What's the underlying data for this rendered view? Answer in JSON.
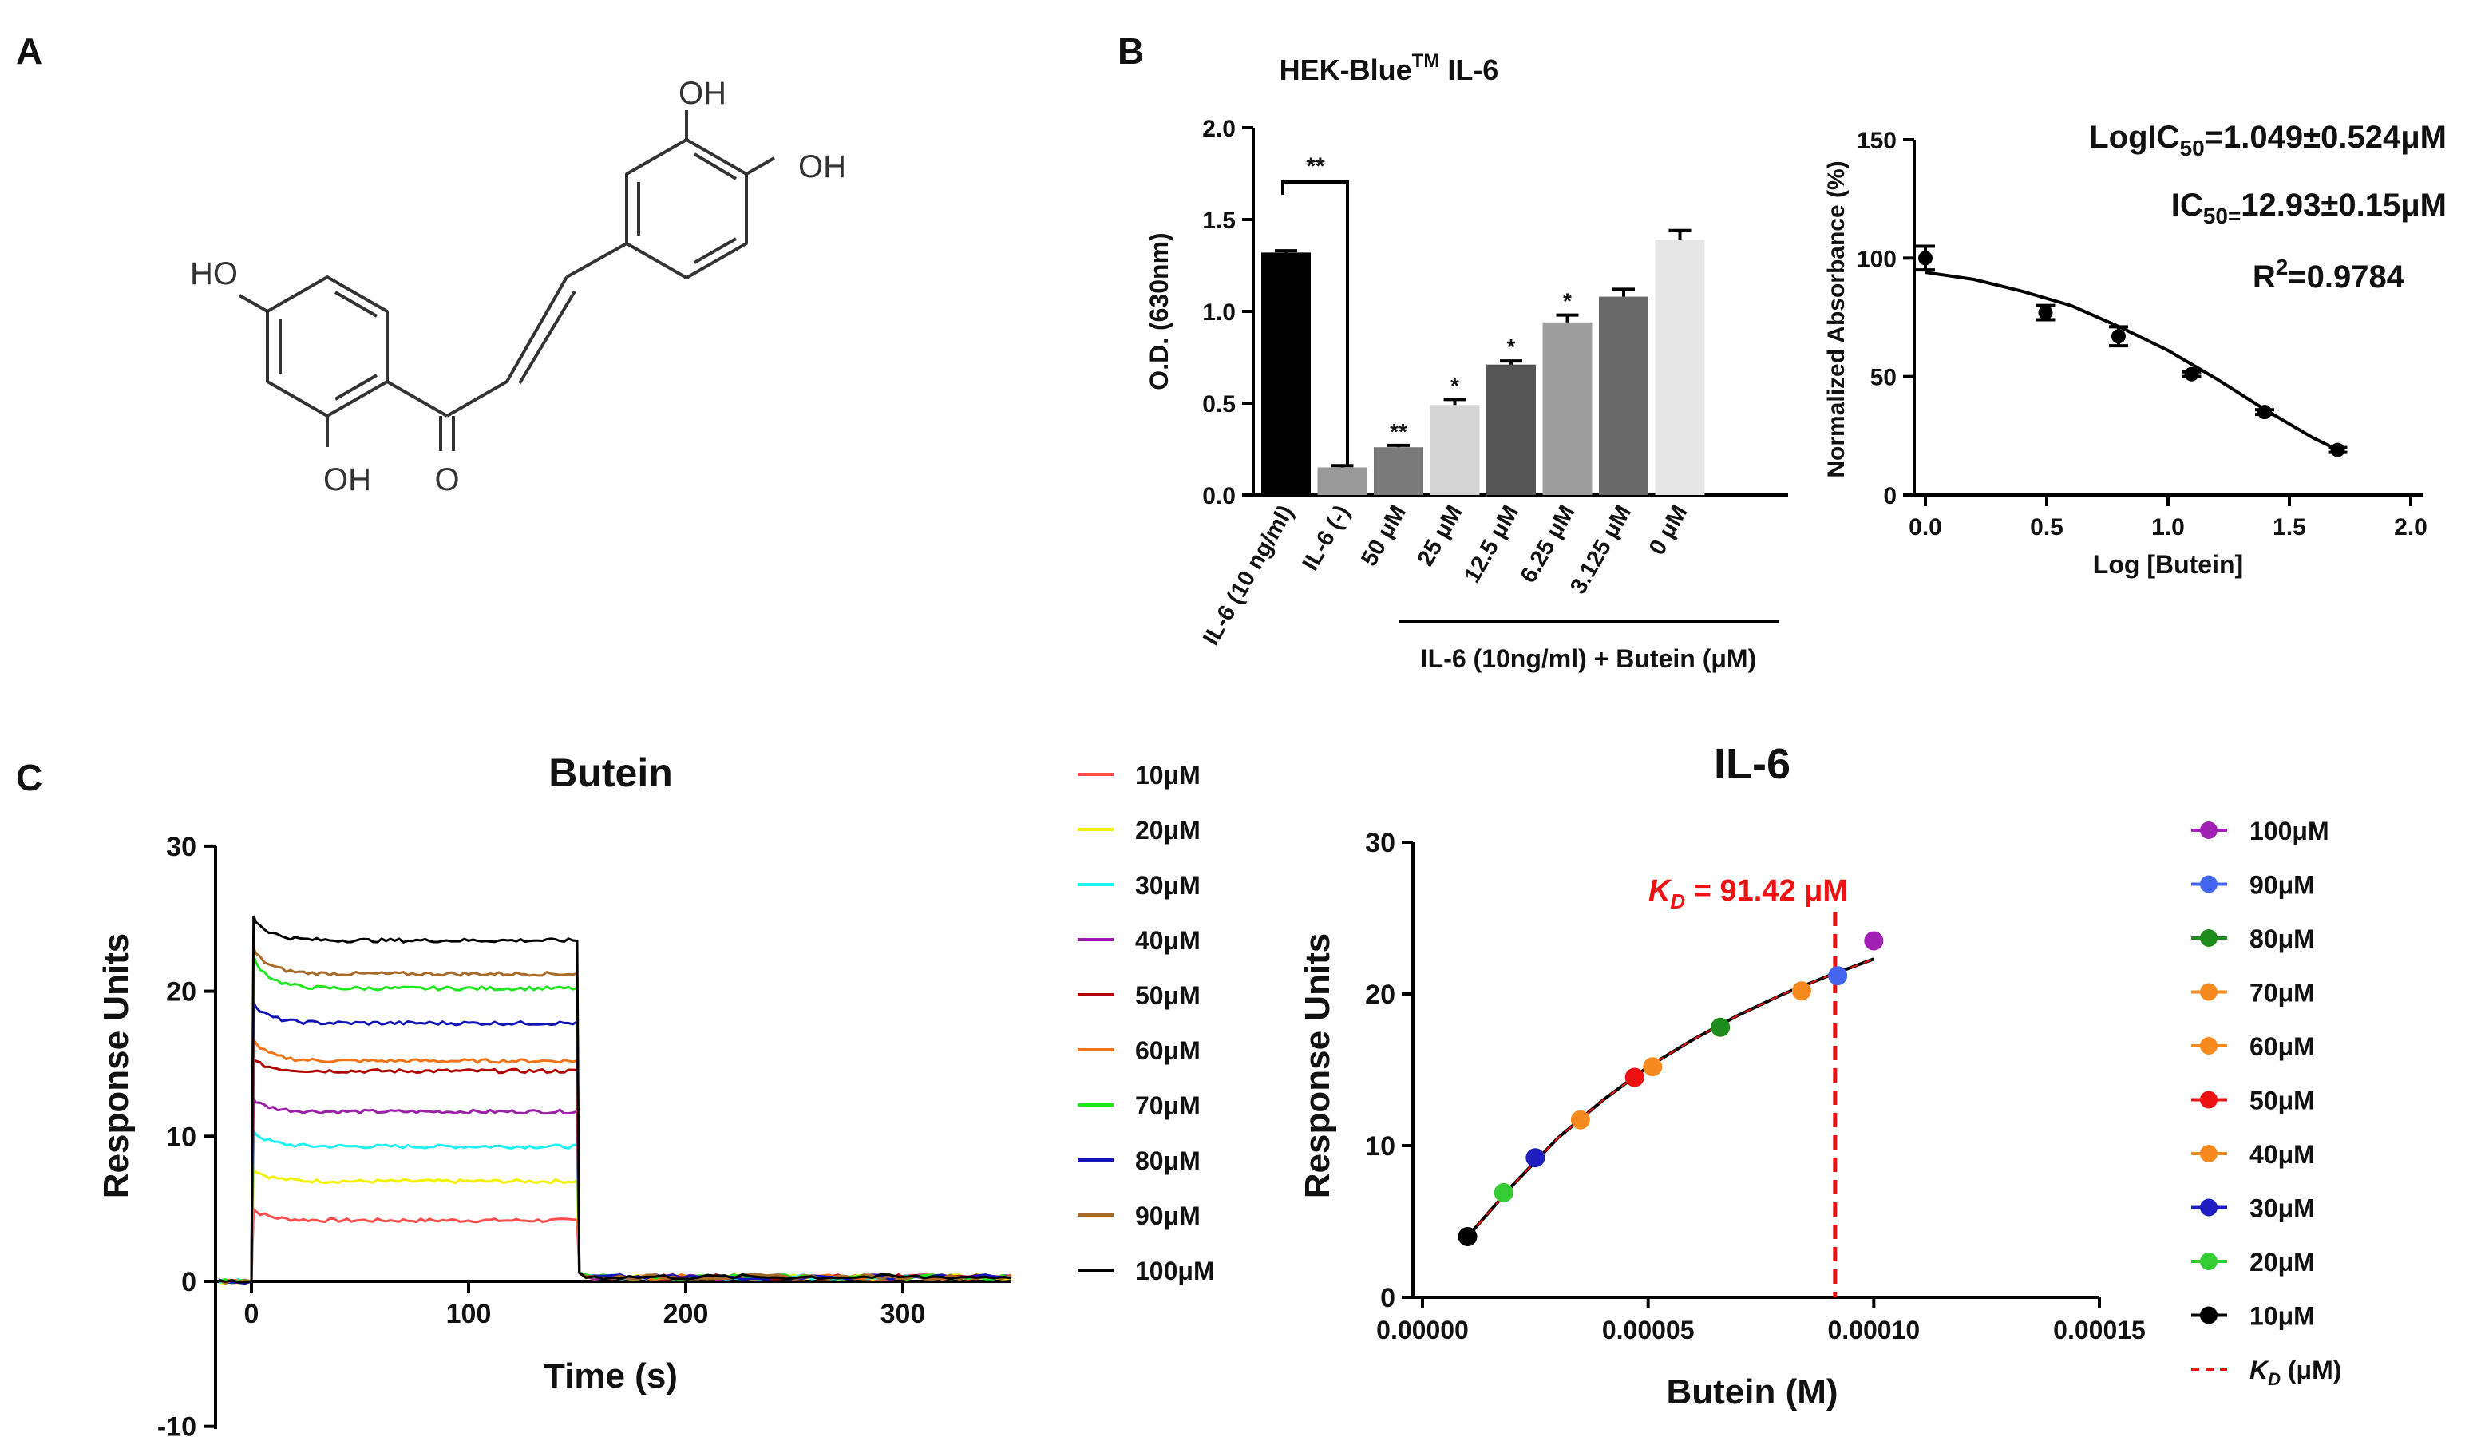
{
  "panels": {
    "A": {
      "letter": "A",
      "structure_labels": {
        "oh_left": "HO",
        "oh_bottom": "OH",
        "oxygen": "O",
        "oh_top": "OH",
        "oh_right": "OH"
      }
    },
    "B": {
      "letter": "B"
    },
    "C": {
      "letter": "C"
    }
  },
  "chart_data": [
    {
      "id": "B_bar",
      "type": "bar",
      "title": "HEK-Blue",
      "title_superscript": "TM",
      "title_suffix": " IL-6",
      "ylabel": "O.D. (630nm)",
      "ylim": [
        0,
        2.0
      ],
      "yticks": [
        "0.0",
        "0.5",
        "1.0",
        "1.5",
        "2.0"
      ],
      "categories": [
        "IL-6 (10 ng/ml)",
        "IL-6 (-)",
        "50 μM",
        "25 μM",
        "12.5 μM",
        "6.25 μM",
        "3.125 μM",
        "0 μM"
      ],
      "values": [
        1.32,
        0.15,
        0.26,
        0.49,
        0.71,
        0.94,
        1.08,
        1.39
      ],
      "errors": [
        0.01,
        0.01,
        0.01,
        0.03,
        0.02,
        0.04,
        0.04,
        0.05
      ],
      "colors": [
        "#000000",
        "#9a9a9a",
        "#7a7a7a",
        "#d4d4d4",
        "#555555",
        "#9e9e9e",
        "#6a6a6a",
        "#e6e6e6"
      ],
      "significance": [
        "",
        "",
        "**",
        "*",
        "*",
        "*",
        "",
        ""
      ],
      "comparison_bracket": {
        "from": "IL-6 (10 ng/ml)",
        "to": "IL-6 (-)",
        "label": "**"
      },
      "group_label": "IL-6 (10ng/ml) + Butein (μM)"
    },
    {
      "id": "B_ic50",
      "type": "scatter",
      "xlabel": "Log [Butein]",
      "ylabel": "Normalized Absorbance (%)",
      "xlim": [
        0,
        2.0
      ],
      "ylim": [
        0,
        150
      ],
      "xticks": [
        "0.0",
        "0.5",
        "1.0",
        "1.5",
        "2.0"
      ],
      "yticks": [
        "0",
        "50",
        "100",
        "150"
      ],
      "x": [
        0.0,
        0.495,
        0.796,
        1.097,
        1.398,
        1.699
      ],
      "y": [
        100,
        77,
        67,
        51,
        35,
        19
      ],
      "yerr": [
        5,
        3,
        4,
        1,
        1,
        1
      ],
      "fit": {
        "x": [
          0.0,
          0.2,
          0.4,
          0.6,
          0.8,
          1.0,
          1.2,
          1.4,
          1.6,
          1.7
        ],
        "y": [
          94,
          91,
          86,
          80,
          71,
          61,
          49,
          36,
          24,
          19
        ]
      },
      "annotations": {
        "logic50_prefix": "LogIC",
        "logic50_sub": "50",
        "logic50_value": "=1.049±0.524μM",
        "ic50_prefix": "IC",
        "ic50_sub": "50=",
        "ic50_value": "12.93±0.15μM",
        "r2_prefix": "R",
        "r2_sup": "2",
        "r2_value": "=0.9784"
      }
    },
    {
      "id": "C_sensorgram",
      "type": "line",
      "title": "Butein",
      "xlabel": "Time (s)",
      "ylabel": "Response Units",
      "xlim": [
        -20,
        350
      ],
      "ylim": [
        -10,
        30
      ],
      "xticks": [
        "0",
        "100",
        "200",
        "300"
      ],
      "yticks": [
        "-10",
        "0",
        "10",
        "20",
        "30"
      ],
      "injection_start": 0,
      "injection_end": 150,
      "series": [
        {
          "name": "10μM",
          "color": "#ff4c4c",
          "plateau": 4.2,
          "peak": 5.0
        },
        {
          "name": "20μM",
          "color": "#f2f200",
          "plateau": 6.9,
          "peak": 7.8
        },
        {
          "name": "30μM",
          "color": "#1ff2f2",
          "plateau": 9.3,
          "peak": 10.4
        },
        {
          "name": "40μM",
          "color": "#9b1fa8",
          "plateau": 11.7,
          "peak": 12.6
        },
        {
          "name": "50μM",
          "color": "#b20000",
          "plateau": 14.5,
          "peak": 15.3
        },
        {
          "name": "60μM",
          "color": "#f07318",
          "plateau": 15.2,
          "peak": 16.7
        },
        {
          "name": "70μM",
          "color": "#1ee81e",
          "plateau": 20.2,
          "peak": 22.5
        },
        {
          "name": "80μM",
          "color": "#1414b4",
          "plateau": 17.8,
          "peak": 19.2
        },
        {
          "name": "90μM",
          "color": "#a86a28",
          "plateau": 21.2,
          "peak": 23.0
        },
        {
          "name": "100μM",
          "color": "#000000",
          "plateau": 23.5,
          "peak": 25.2
        }
      ]
    },
    {
      "id": "C_affinity",
      "type": "scatter",
      "title": "IL-6",
      "xlabel": "Butein (M)",
      "ylabel": "Response Units",
      "xlim": [
        0,
        0.00015
      ],
      "ylim": [
        0,
        30
      ],
      "xticks": [
        "0.00000",
        "0.00005",
        "0.00010",
        "0.00015"
      ],
      "yticks": [
        "0",
        "10",
        "20",
        "30"
      ],
      "x": [
        1e-05,
        1.8e-05,
        2.5e-05,
        3.5e-05,
        4.7e-05,
        5.1e-05,
        6.6e-05,
        8.4e-05,
        9.2e-05,
        0.0001
      ],
      "y": [
        4.0,
        6.9,
        9.2,
        11.7,
        14.5,
        15.2,
        17.8,
        20.2,
        21.2,
        23.5
      ],
      "point_colors": [
        "#000000",
        "#33cc33",
        "#1f1fbf",
        "#f78a1e",
        "#ee1111",
        "#f78a1e",
        "#1d8c1d",
        "#f78a1e",
        "#4466ee",
        "#a020b4"
      ],
      "fit": {
        "x": [
          1e-05,
          2e-05,
          3e-05,
          4e-05,
          5e-05,
          6e-05,
          7e-05,
          8e-05,
          9e-05,
          0.0001
        ],
        "y": [
          4.0,
          7.4,
          10.5,
          13.0,
          15.2,
          17.0,
          18.6,
          20.0,
          21.2,
          22.3
        ]
      },
      "kd_value": 9.142e-05,
      "kd_label_prefix": "K",
      "kd_label_sub": "D",
      "kd_label_value": " = 91.42 μM",
      "legend": [
        {
          "name": "100μM",
          "color": "#a020b4"
        },
        {
          "name": "90μM",
          "color": "#4466ee"
        },
        {
          "name": "80μM",
          "color": "#1d8c1d"
        },
        {
          "name": "70μM",
          "color": "#f78a1e"
        },
        {
          "name": "60μM",
          "color": "#f78a1e"
        },
        {
          "name": "50μM",
          "color": "#ee1111"
        },
        {
          "name": "40μM",
          "color": "#f78a1e"
        },
        {
          "name": "30μM",
          "color": "#1f1fbf"
        },
        {
          "name": "20μM",
          "color": "#33cc33"
        },
        {
          "name": "10μM",
          "color": "#000000"
        }
      ],
      "legend_kd": {
        "prefix": "K",
        "sub": "D",
        "suffix": " (μM)",
        "color": "#ee1111"
      }
    }
  ]
}
